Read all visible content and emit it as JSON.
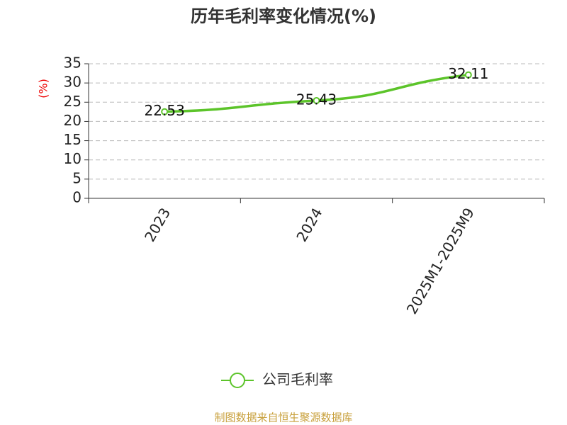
{
  "chart_data": {
    "type": "line",
    "title": "历年毛利率变化情况(%)",
    "y_label": "(%)",
    "categories": [
      "2023",
      "2024",
      "2025M1-2025M9"
    ],
    "series": [
      {
        "name": "公司毛利率",
        "color": "#5cc42a",
        "values": [
          22.53,
          25.43,
          32.11
        ]
      }
    ],
    "ylim": [
      0,
      35
    ],
    "yticks": [
      0,
      5,
      10,
      15,
      20,
      25,
      30,
      35
    ],
    "grid": true,
    "legend": "bottom",
    "source": "制图数据来自恒生聚源数据库"
  }
}
